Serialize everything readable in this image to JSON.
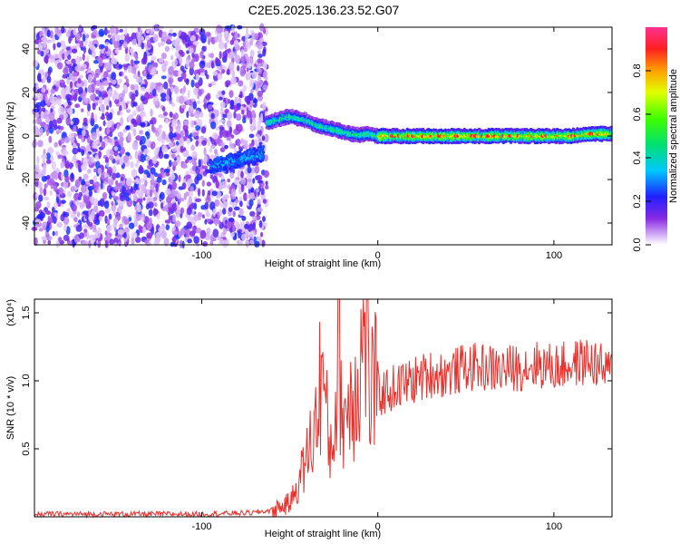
{
  "page": {
    "title": "C2E5.2025.136.23.52.G07"
  },
  "chart_data": [
    {
      "type": "heatmap",
      "xlabel": "Height of straight line (km)",
      "ylabel": "Frequency (Hz)",
      "xlim": [
        -195,
        133
      ],
      "ylim": [
        -50,
        50
      ],
      "x_ticks": [
        -100,
        0,
        100
      ],
      "y_ticks": [
        -40,
        -20,
        0,
        20,
        40
      ],
      "x_tick_labels": [
        "-100",
        "0",
        "100"
      ],
      "y_tick_labels": [
        "-40",
        "-20",
        "0",
        "20",
        "40"
      ],
      "noise_region_x": [
        -195,
        -63
      ],
      "signal_ridge": {
        "x": [
          -63,
          -55,
          -50,
          -45,
          -40,
          -35,
          -30,
          -25,
          -20,
          -15,
          -10,
          -5,
          0,
          10,
          20,
          30,
          40,
          50,
          60,
          70,
          80,
          90,
          100,
          110,
          120,
          133
        ],
        "y": [
          6,
          8,
          9,
          8,
          7,
          5,
          4,
          3,
          2,
          1,
          0.5,
          1,
          0,
          0,
          0,
          0,
          0,
          0,
          0,
          0,
          0,
          0,
          0,
          0,
          1,
          1
        ]
      },
      "lower_branch": {
        "x": [
          -95,
          -90,
          -85,
          -80,
          -75,
          -70,
          -65
        ],
        "y": [
          -14,
          -13,
          -12,
          -11,
          -10,
          -9,
          -8
        ]
      },
      "colorbar": {
        "label": "Normalized spectral amplitude",
        "range": [
          0,
          1
        ],
        "ticks": [
          0.0,
          0.2,
          0.4,
          0.6,
          0.8
        ],
        "tick_labels": [
          "0.0",
          "0.2",
          "0.4",
          "0.6",
          "0.8"
        ]
      }
    },
    {
      "type": "line",
      "xlabel": "Height of straight line (km)",
      "ylabel": "SNR (10 * v/v)",
      "scale_note": "(x10⁴)",
      "xlim": [
        -195,
        133
      ],
      "ylim": [
        0,
        1.6
      ],
      "x_ticks": [
        -100,
        0,
        100
      ],
      "y_ticks": [
        0.5,
        1.0,
        1.5
      ],
      "x_tick_labels": [
        "-100",
        "0",
        "100"
      ],
      "y_tick_labels": [
        "0.5",
        "1.0",
        "1.5"
      ],
      "series": [
        {
          "color": "#e8302c",
          "x": [
            -195,
            -150,
            -100,
            -70,
            -60,
            -50,
            -45,
            -40,
            -35,
            -32,
            -30,
            -28,
            -25,
            -22,
            -20,
            -15,
            -10,
            -6,
            -5,
            -3,
            0,
            10,
            20,
            30,
            40,
            50,
            60,
            70,
            80,
            90,
            100,
            110,
            120,
            133
          ],
          "y": [
            0.02,
            0.02,
            0.02,
            0.03,
            0.05,
            0.1,
            0.25,
            0.45,
            0.7,
            1.1,
            0.9,
            0.5,
            0.6,
            1.3,
            0.7,
            0.9,
            1.1,
            1.55,
            0.8,
            1.0,
            0.9,
            0.95,
            1.0,
            1.05,
            1.05,
            1.1,
            1.1,
            1.08,
            1.1,
            1.12,
            1.1,
            1.12,
            1.15,
            1.05
          ]
        }
      ]
    }
  ]
}
